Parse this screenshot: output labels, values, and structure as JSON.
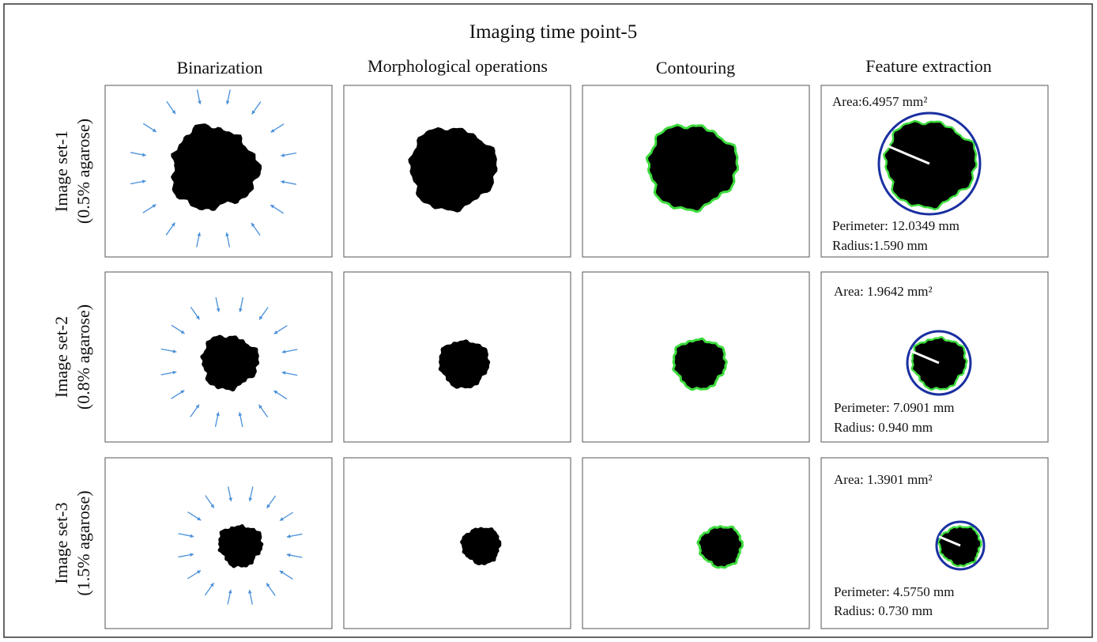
{
  "title": "Imaging time point-5",
  "columns": [
    "Binarization",
    "Morphological operations",
    "Contouring",
    "Feature extraction"
  ],
  "rows": [
    {
      "label": [
        "Image set-1",
        "(0.5% agarose)"
      ],
      "area": "Area:6.4957 mm²",
      "perimeter": "Perimeter: 12.0349 mm",
      "radius": "Radius:1.590 mm"
    },
    {
      "label": [
        "Image set-2",
        "(0.8% agarose)"
      ],
      "area": "Area: 1.9642  mm²",
      "perimeter": "Perimeter: 7.0901 mm",
      "radius": "Radius: 0.940 mm"
    },
    {
      "label": [
        "Image set-3",
        "(1.5% agarose)"
      ],
      "area": "Area: 1.3901  mm²",
      "perimeter": "Perimeter: 4.5750 mm",
      "radius": "Radius: 0.730 mm"
    }
  ]
}
